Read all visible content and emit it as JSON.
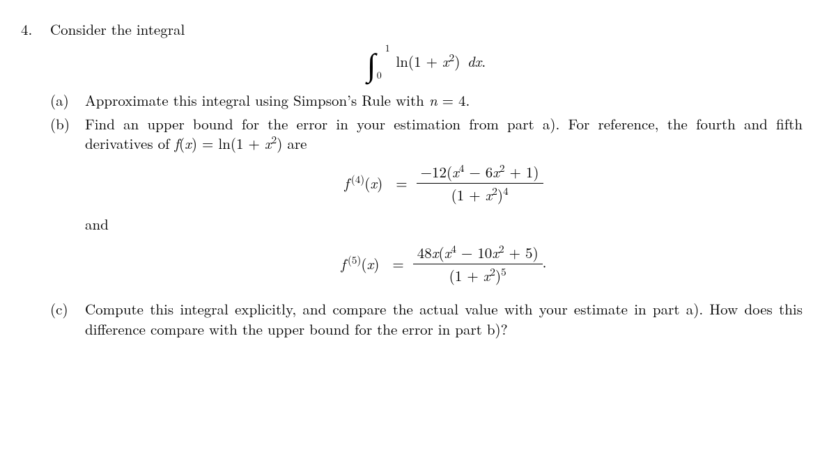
{
  "problem": {
    "number": "4.",
    "intro": "Consider the integral",
    "integral": {
      "upper": "1",
      "lower": "0",
      "integrand_html": "ln(1 + <span class='it'>x</span><sup>2</sup>)&nbsp;<span class='it'>dx</span>."
    },
    "parts": {
      "a": {
        "label": "(a)",
        "text_html": "Approximate this integral using Simpson’s Rule with <span class='it'>n</span> = 4."
      },
      "b": {
        "label": "(b)",
        "text1_html": "Find an upper bound for the error in your estimation from part a). For reference, the fourth and fifth derivatives of <span class='it'>f</span>(<span class='it'>x</span>) = ln(1 + <span class='it'>x</span><sup>2</sup>) are",
        "eq1": {
          "lhs_html": "<span class='it'>f</span><sup>&thinsp;(4)</sup>(<span class='it'>x</span>)",
          "num_html": "&minus;12(<span class='it'>x</span><sup>4</sup> &minus; 6<span class='it'>x</span><sup>2</sup> + 1)",
          "den_html": "(1 + <span class='it'>x</span><sup>2</sup>)<sup>4</sup>"
        },
        "and": "and",
        "eq2": {
          "lhs_html": "<span class='it'>f</span><sup>&thinsp;(5)</sup>(<span class='it'>x</span>)",
          "num_html": "48<span class='it'>x</span>(<span class='it'>x</span><sup>4</sup> &minus; 10<span class='it'>x</span><sup>2</sup> + 5)",
          "den_html": "(1 + <span class='it'>x</span><sup>2</sup>)<sup>5</sup>",
          "trailing": "."
        }
      },
      "c": {
        "label": "(c)",
        "text_html": "Compute this integral explicitly, and compare the actual value with your estimate in part a). How does this difference compare with the upper bound for the error in part b)?"
      }
    }
  },
  "style": {
    "text_color": "#000000",
    "background_color": "#ffffff",
    "base_fontsize_pt": 16,
    "math_font": "Computer Modern / Latin Modern serif"
  }
}
